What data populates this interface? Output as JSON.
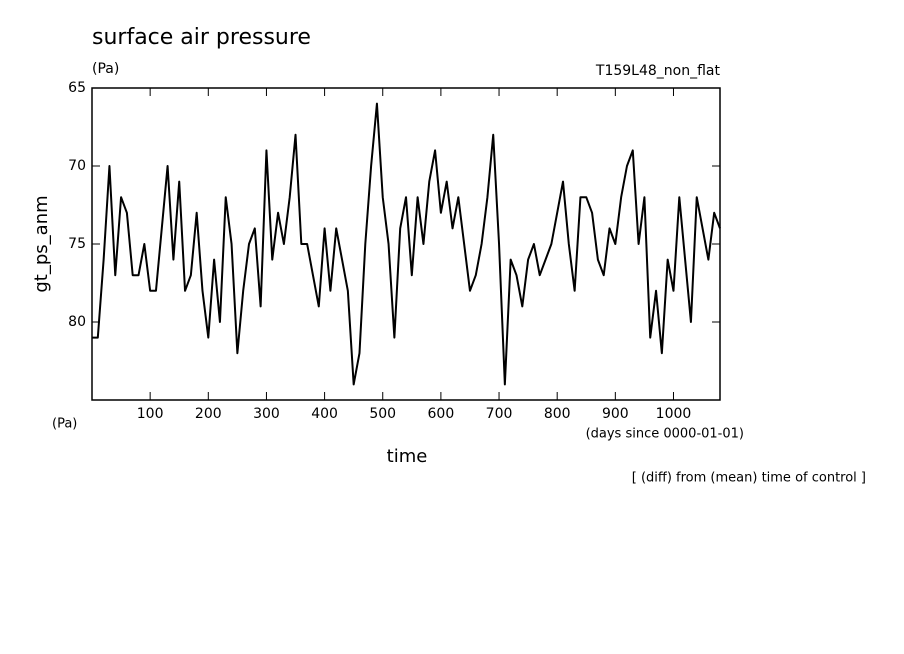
{
  "chart_data": {
    "type": "line",
    "title": "surface air pressure",
    "y_unit": "(Pa)",
    "subtitle": "T159L48_non_flat",
    "y_label": "gt_ps_anm",
    "x_unit_left": "(Pa)",
    "x_label": "time",
    "x_unit": "(days since 0000-01-01)",
    "annotation": "[ (diff) from (mean) time of control ]",
    "color": "#000000",
    "x": [
      0,
      10,
      20,
      30,
      40,
      50,
      60,
      70,
      80,
      90,
      100,
      110,
      120,
      130,
      140,
      150,
      160,
      170,
      180,
      190,
      200,
      210,
      220,
      230,
      240,
      250,
      260,
      270,
      280,
      290,
      300,
      310,
      320,
      330,
      340,
      350,
      360,
      370,
      380,
      390,
      400,
      410,
      420,
      430,
      440,
      450,
      460,
      470,
      480,
      490,
      500,
      510,
      520,
      530,
      540,
      550,
      560,
      570,
      580,
      590,
      600,
      610,
      620,
      630,
      640,
      650,
      660,
      670,
      680,
      690,
      700,
      710,
      720,
      730,
      740,
      750,
      760,
      770,
      780,
      790,
      800,
      810,
      820,
      830,
      840,
      850,
      860,
      870,
      880,
      890,
      900,
      910,
      920,
      930,
      940,
      950,
      960,
      970,
      980,
      990,
      1000,
      1010,
      1020,
      1030,
      1040,
      1050,
      1060,
      1070,
      1080
    ],
    "values": [
      81,
      81,
      76,
      70,
      77,
      72,
      73,
      77,
      77,
      75,
      78,
      78,
      74,
      70,
      76,
      71,
      78,
      77,
      73,
      78,
      81,
      76,
      80,
      72,
      75,
      82,
      78,
      75,
      74,
      79,
      69,
      76,
      73,
      75,
      72,
      68,
      75,
      75,
      77,
      79,
      74,
      78,
      74,
      76,
      78,
      84,
      82,
      75,
      70,
      66,
      72,
      75,
      81,
      74,
      72,
      77,
      72,
      75,
      71,
      69,
      73,
      71,
      74,
      72,
      75,
      78,
      77,
      75,
      72,
      68,
      75,
      84,
      76,
      77,
      79,
      76,
      75,
      77,
      76,
      75,
      73,
      71,
      75,
      78,
      72,
      72,
      73,
      76,
      77,
      74,
      75,
      72,
      70,
      69,
      75,
      72,
      81,
      78,
      82,
      76,
      78,
      72,
      76,
      80,
      72,
      74,
      76,
      73,
      74
    ],
    "xlim": [
      0,
      1080
    ],
    "ylim": [
      85,
      65
    ],
    "xticks": [
      100,
      200,
      300,
      400,
      500,
      600,
      700,
      800,
      900,
      1000
    ],
    "yticks": [
      65,
      70,
      75,
      80
    ]
  }
}
